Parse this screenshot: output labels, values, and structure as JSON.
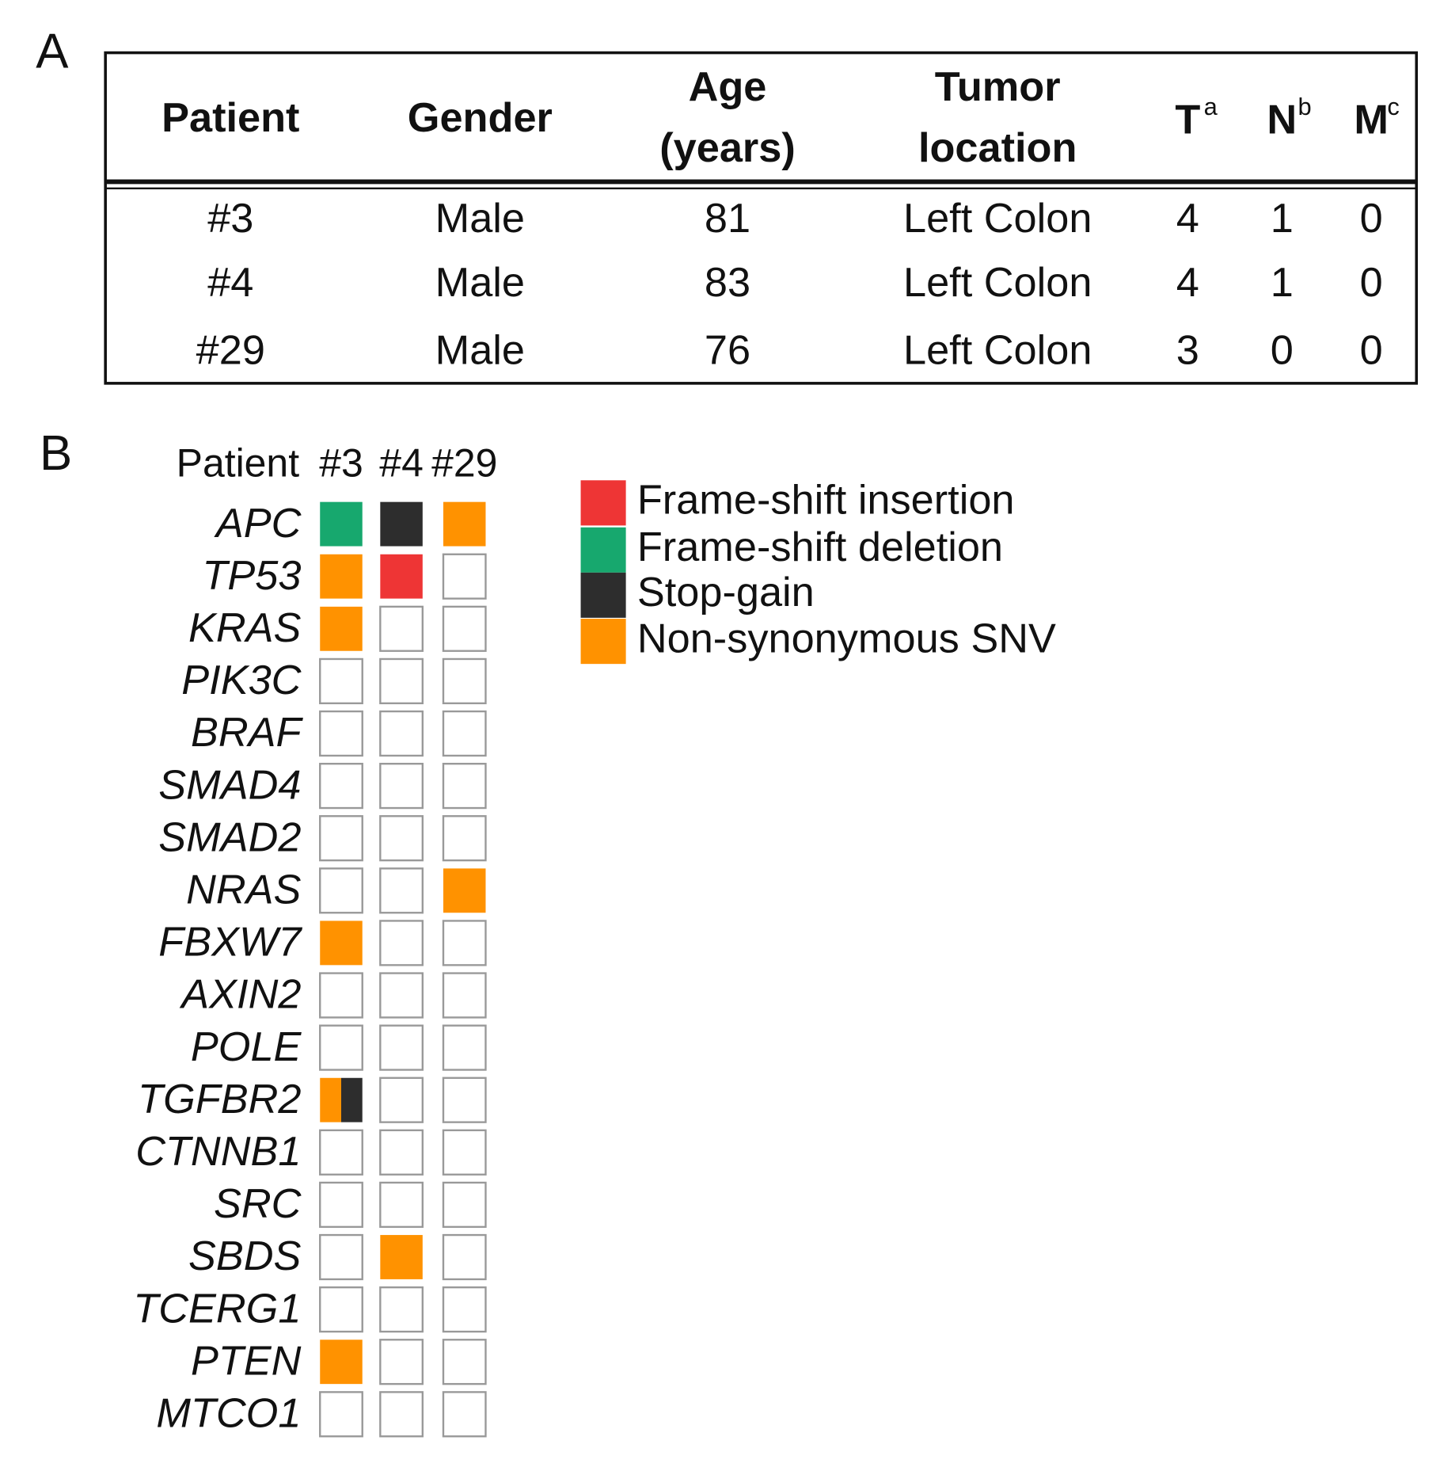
{
  "panel_a": {
    "label": "A",
    "headers": [
      {
        "lines": [
          "Patient"
        ]
      },
      {
        "lines": [
          "Gender"
        ]
      },
      {
        "lines": [
          "Age",
          "(years)"
        ]
      },
      {
        "lines": [
          "Tumor",
          "location"
        ]
      },
      {
        "text": "T",
        "sup": "a"
      },
      {
        "text": "N",
        "sup": "b"
      },
      {
        "text": "M",
        "sup": "c"
      }
    ],
    "rows": [
      [
        "#3",
        "Male",
        "81",
        "Left Colon",
        "4",
        "1",
        "0"
      ],
      [
        "#4",
        "Male",
        "83",
        "Left Colon",
        "4",
        "1",
        "0"
      ],
      [
        "#29",
        "Male",
        "76",
        "Left Colon",
        "3",
        "0",
        "0"
      ]
    ]
  },
  "panel_b": {
    "label": "B",
    "patient_label": "Patient",
    "patients": [
      "#3",
      "#4",
      "#29"
    ],
    "legend": [
      {
        "name": "Frame-shift insertion",
        "color": "#ee3535"
      },
      {
        "name": "Frame-shift deletion",
        "color": "#17a86e"
      },
      {
        "name": "Stop-gain",
        "color": "#2d2d2d"
      },
      {
        "name": "Non-synonymous SNV",
        "color": "#ff9200"
      }
    ],
    "genes": [
      "APC",
      "TP53",
      "KRAS",
      "PIK3C",
      "BRAF",
      "SMAD4",
      "SMAD2",
      "NRAS",
      "FBXW7",
      "AXIN2",
      "POLE",
      "TGFBR2",
      "CTNNB1",
      "SRC",
      "SBDS",
      "TCERG1",
      "PTEN",
      "MTCO1"
    ],
    "cells": [
      [
        [
          "Frame-shift deletion"
        ],
        [
          "Stop-gain"
        ],
        [
          "Non-synonymous SNV"
        ]
      ],
      [
        [
          "Non-synonymous SNV"
        ],
        [
          "Frame-shift insertion"
        ],
        []
      ],
      [
        [
          "Non-synonymous SNV"
        ],
        [],
        []
      ],
      [
        [],
        [],
        []
      ],
      [
        [],
        [],
        []
      ],
      [
        [],
        [],
        []
      ],
      [
        [],
        [],
        []
      ],
      [
        [],
        [],
        [
          "Non-synonymous SNV"
        ]
      ],
      [
        [
          "Non-synonymous SNV"
        ],
        [],
        []
      ],
      [
        [],
        [],
        []
      ],
      [
        [],
        [],
        []
      ],
      [
        [
          "Non-synonymous SNV",
          "Stop-gain"
        ],
        [],
        []
      ],
      [
        [],
        [],
        []
      ],
      [
        [],
        [],
        []
      ],
      [
        [],
        [
          "Non-synonymous SNV"
        ],
        []
      ],
      [
        [],
        [],
        []
      ],
      [
        [
          "Non-synonymous SNV"
        ],
        [],
        []
      ],
      [
        [],
        [],
        []
      ]
    ]
  }
}
